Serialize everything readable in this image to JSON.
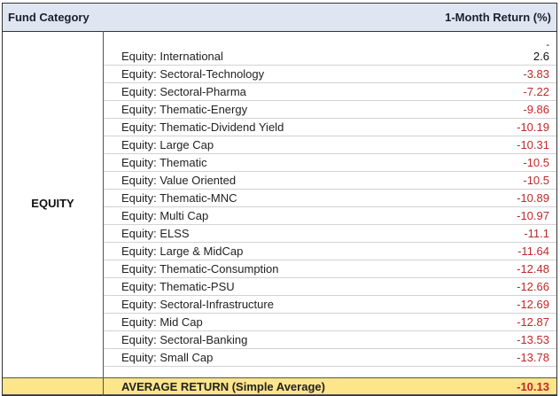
{
  "header": {
    "category_label": "Fund Category",
    "return_label": "1-Month Return (%)"
  },
  "group": {
    "label": "EQUITY",
    "top_marker": "-"
  },
  "rows": [
    {
      "name": "Equity: International",
      "value": "2.6"
    },
    {
      "name": "Equity: Sectoral-Technology",
      "value": "-3.83"
    },
    {
      "name": "Equity: Sectoral-Pharma",
      "value": "-7.22"
    },
    {
      "name": "Equity: Thematic-Energy",
      "value": "-9.86"
    },
    {
      "name": "Equity: Thematic-Dividend Yield",
      "value": "-10.19"
    },
    {
      "name": "Equity: Large Cap",
      "value": "-10.31"
    },
    {
      "name": "Equity: Thematic",
      "value": "-10.5"
    },
    {
      "name": "Equity: Value Oriented",
      "value": "-10.5"
    },
    {
      "name": "Equity: Thematic-MNC",
      "value": "-10.89"
    },
    {
      "name": "Equity: Multi Cap",
      "value": "-10.97"
    },
    {
      "name": "Equity: ELSS",
      "value": "-11.1"
    },
    {
      "name": "Equity: Large & MidCap",
      "value": "-11.64"
    },
    {
      "name": "Equity: Thematic-Consumption",
      "value": "-12.48"
    },
    {
      "name": "Equity: Thematic-PSU",
      "value": "-12.66"
    },
    {
      "name": "Equity: Sectoral-Infrastructure",
      "value": "-12.69"
    },
    {
      "name": "Equity: Mid Cap",
      "value": "-12.87"
    },
    {
      "name": "Equity: Sectoral-Banking",
      "value": "-13.53"
    },
    {
      "name": "Equity: Small Cap",
      "value": "-13.78"
    }
  ],
  "average": {
    "label": "AVERAGE RETURN (Simple Average)",
    "value": "-10.13"
  },
  "colors": {
    "header_bg": "#dfe6f1",
    "negative": "#c0282a",
    "average_bg": "#fde58a"
  }
}
